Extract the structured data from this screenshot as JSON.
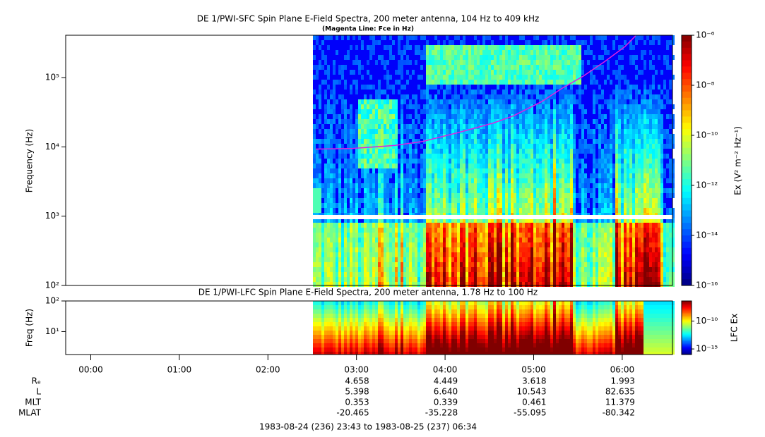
{
  "chart_data": [
    {
      "type": "spectrogram",
      "title": "DE 1/PWI-SFC  Spin Plane E-Field Spectra, 200 meter antenna, 104 Hz to 409 kHz",
      "subtitle": "(Magenta Line: Fce in Hz)",
      "y_label": "Frequency (Hz)",
      "ylog": true,
      "ylim": [
        100,
        409000
      ],
      "yticks": [
        {
          "value": 100,
          "label": "10²"
        },
        {
          "value": 1000,
          "label": "10³"
        },
        {
          "value": 10000,
          "label": "10⁴"
        },
        {
          "value": 100000,
          "label": "10⁵"
        }
      ],
      "xlim": [
        -0.283,
        6.567
      ],
      "colormap": "jet",
      "zlog": true,
      "zlim": [
        1e-16,
        1e-06
      ],
      "zticks": [
        {
          "value": 1e-06,
          "label": "10⁻⁶"
        },
        {
          "value": 1e-08,
          "label": "10⁻⁸"
        },
        {
          "value": 1e-10,
          "label": "10⁻¹⁰"
        },
        {
          "value": 1e-12,
          "label": "10⁻¹²"
        },
        {
          "value": 1e-14,
          "label": "10⁻¹⁴"
        },
        {
          "value": 1e-16,
          "label": "10⁻¹⁶"
        }
      ],
      "z_label": "Ex (V² m⁻² Hz⁻¹)",
      "x": [
        2.54,
        2.96,
        3.43,
        3.75,
        4.14,
        4.54,
        4.77,
        5.09,
        5.32,
        5.56,
        5.8,
        6.03,
        6.15
      ],
      "series": [
        {
          "color": "#e020e0",
          "values": [
            9300,
            9500,
            10500,
            12000,
            16000,
            22000,
            28000,
            45000,
            70000,
            105000,
            170000,
            280000,
            400000
          ]
        }
      ]
    },
    {
      "type": "spectrogram",
      "title": "DE 1/PWI-LFC  Spin Plane E-Field Spectra, 200 meter antenna, 1.78 Hz to 100 Hz",
      "y_label": "Freq (Hz)",
      "ylog": true,
      "ylim": [
        1.78,
        100
      ],
      "yticks": [
        {
          "value": 10,
          "label": "10¹"
        },
        {
          "value": 100,
          "label": "10²"
        }
      ],
      "xlim": [
        -0.283,
        6.567
      ],
      "xticks": [
        {
          "value": 0,
          "label": "00:00"
        },
        {
          "value": 1,
          "label": "01:00"
        },
        {
          "value": 2,
          "label": "02:00"
        },
        {
          "value": 3,
          "label": "03:00"
        },
        {
          "value": 4,
          "label": "04:00"
        },
        {
          "value": 5,
          "label": "05:00"
        },
        {
          "value": 6,
          "label": "06:00"
        }
      ],
      "colormap": "jet",
      "zlog": true,
      "zlim": [
        1e-16,
        4e-07
      ],
      "zticks": [
        {
          "value": 1e-10,
          "label": "10⁻¹⁰"
        },
        {
          "value": 1e-15,
          "label": "10⁻¹⁵"
        }
      ],
      "z_label": "LFC Ex"
    }
  ],
  "ephemeris": {
    "rows": [
      {
        "label": "Rₑ",
        "values": [
          "4.658",
          "4.449",
          "3.618",
          "1.993"
        ]
      },
      {
        "label": "L",
        "values": [
          "5.398",
          "6.640",
          "10.543",
          "82.635"
        ]
      },
      {
        "label": "MLT",
        "values": [
          "0.353",
          "0.339",
          "0.461",
          "11.379"
        ]
      },
      {
        "label": "MLAT",
        "values": [
          "-20.465",
          "-35.228",
          "-55.095",
          "-80.342"
        ]
      }
    ]
  },
  "footer": "1983-08-24 (236) 23:43 to 1983-08-25 (237) 06:34"
}
